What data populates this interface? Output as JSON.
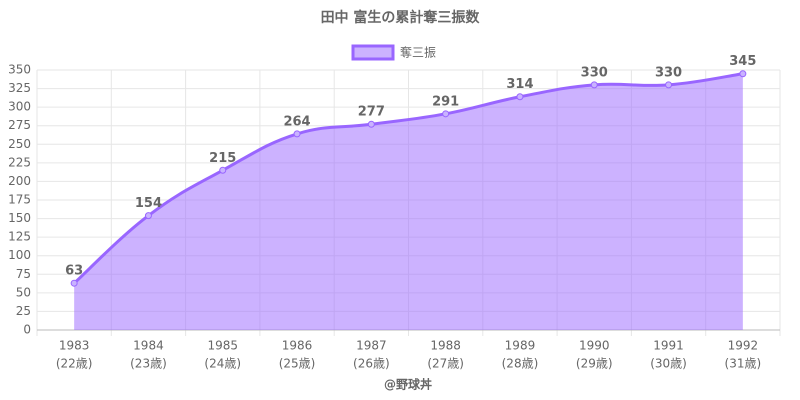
{
  "chart_data": {
    "type": "area",
    "title": "田中 富生の累計奪三振数",
    "x_label": "@野球丼",
    "categories": [
      [
        "1983",
        "(22歳)"
      ],
      [
        "1984",
        "(23歳)"
      ],
      [
        "1985",
        "(24歳)"
      ],
      [
        "1986",
        "(25歳)"
      ],
      [
        "1987",
        "(26歳)"
      ],
      [
        "1988",
        "(27歳)"
      ],
      [
        "1989",
        "(28歳)"
      ],
      [
        "1990",
        "(29歳)"
      ],
      [
        "1991",
        "(30歳)"
      ],
      [
        "1992",
        "(31歳)"
      ]
    ],
    "series": [
      {
        "name": "奪三振",
        "color": "#9966ff",
        "values": [
          63,
          154,
          215,
          264,
          277,
          291,
          314,
          330,
          330,
          345
        ]
      }
    ],
    "ylim": [
      0,
      350
    ],
    "yticks": [
      0,
      25,
      50,
      75,
      100,
      125,
      150,
      175,
      200,
      225,
      250,
      275,
      300,
      325,
      350
    ],
    "grid": true,
    "legend": "top"
  }
}
